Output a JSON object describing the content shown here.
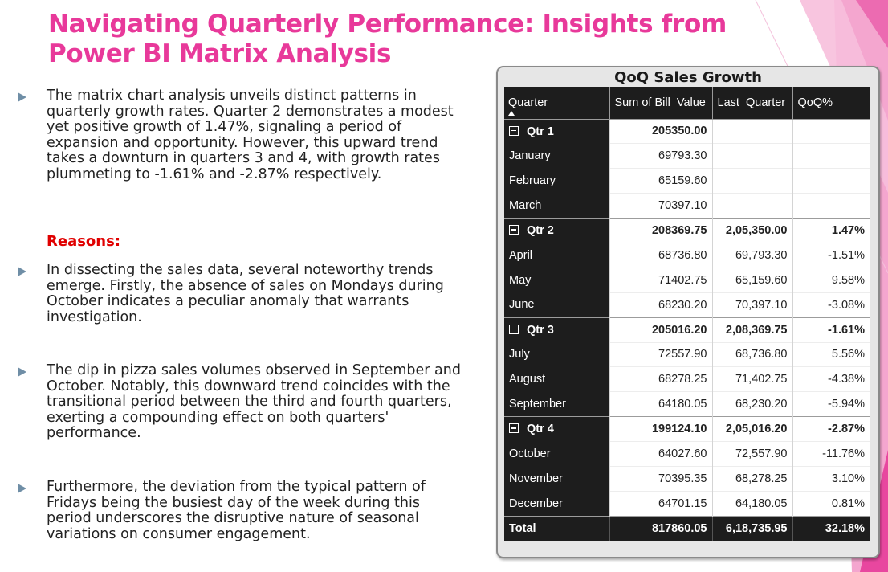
{
  "slide": {
    "title": "Navigating Quarterly Performance: Insights from Power BI Matrix Analysis",
    "bullets": [
      "The matrix chart analysis unveils distinct patterns in quarterly growth rates. Quarter 2 demonstrates a modest yet positive growth of 1.47%, signaling a period of expansion and opportunity. However, this upward trend takes a downturn in quarters 3 and 4, with growth rates plummeting to -1.61% and -2.87% respectively."
    ],
    "reasons_label": "Reasons:",
    "reasons": [
      "In dissecting the sales data, several noteworthy trends emerge. Firstly, the absence of sales on Mondays during October indicates a peculiar anomaly that warrants investigation.",
      "The dip in pizza sales volumes observed in September and October. Notably, this downward trend coincides with the transitional period between the third and fourth quarters, exerting a compounding effect on both quarters' performance.",
      "Furthermore, the deviation from the typical pattern of Fridays being the busiest day of the week during this period underscores the disruptive nature of seasonal variations on consumer engagement."
    ],
    "accent_color": "#e8399a",
    "reasons_color": "#e00000"
  },
  "matrix": {
    "title": "QoQ Sales Growth",
    "columns": [
      "Quarter",
      "Sum of Bill_Value",
      "Last_Quarter",
      "QoQ%"
    ],
    "rows": [
      {
        "label": "Qtr 1",
        "sum": "205350.00",
        "last": "",
        "qoq": "",
        "level": "quarter"
      },
      {
        "label": "January",
        "sum": "69793.30",
        "last": "",
        "qoq": "",
        "level": "month"
      },
      {
        "label": "February",
        "sum": "65159.60",
        "last": "",
        "qoq": "",
        "level": "month"
      },
      {
        "label": "March",
        "sum": "70397.10",
        "last": "",
        "qoq": "",
        "level": "month"
      },
      {
        "label": "Qtr 2",
        "sum": "208369.75",
        "last": "2,05,350.00",
        "qoq": "1.47%",
        "level": "quarter"
      },
      {
        "label": "April",
        "sum": "68736.80",
        "last": "69,793.30",
        "qoq": "-1.51%",
        "level": "month"
      },
      {
        "label": "May",
        "sum": "71402.75",
        "last": "65,159.60",
        "qoq": "9.58%",
        "level": "month"
      },
      {
        "label": "June",
        "sum": "68230.20",
        "last": "70,397.10",
        "qoq": "-3.08%",
        "level": "month"
      },
      {
        "label": "Qtr 3",
        "sum": "205016.20",
        "last": "2,08,369.75",
        "qoq": "-1.61%",
        "level": "quarter"
      },
      {
        "label": "July",
        "sum": "72557.90",
        "last": "68,736.80",
        "qoq": "5.56%",
        "level": "month"
      },
      {
        "label": "August",
        "sum": "68278.25",
        "last": "71,402.75",
        "qoq": "-4.38%",
        "level": "month"
      },
      {
        "label": "September",
        "sum": "64180.05",
        "last": "68,230.20",
        "qoq": "-5.94%",
        "level": "month"
      },
      {
        "label": "Qtr 4",
        "sum": "199124.10",
        "last": "2,05,016.20",
        "qoq": "-2.87%",
        "level": "quarter"
      },
      {
        "label": "October",
        "sum": "64027.60",
        "last": "72,557.90",
        "qoq": "-11.76%",
        "level": "month"
      },
      {
        "label": "November",
        "sum": "70395.35",
        "last": "68,278.25",
        "qoq": "3.10%",
        "level": "month"
      },
      {
        "label": "December",
        "sum": "64701.15",
        "last": "64,180.05",
        "qoq": "0.81%",
        "level": "month"
      }
    ],
    "total": {
      "label": "Total",
      "sum": "817860.05",
      "last": "6,18,735.95",
      "qoq": "32.18%"
    }
  }
}
